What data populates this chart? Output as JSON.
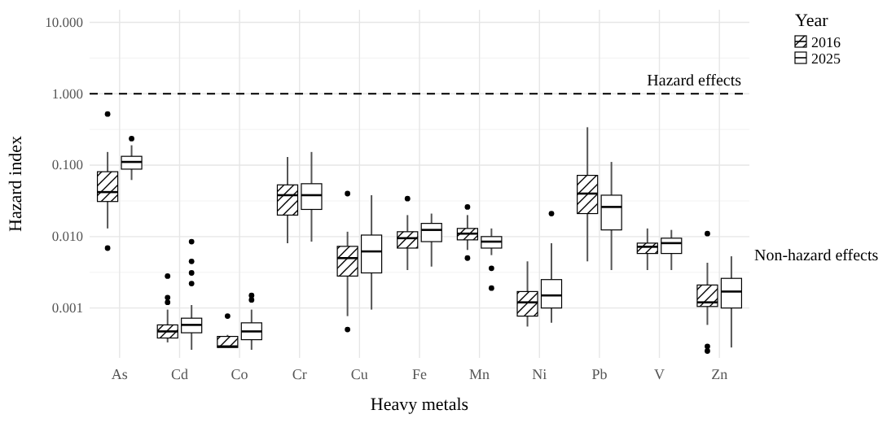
{
  "chart_data": {
    "type": "box",
    "xlabel": "Heavy metals",
    "ylabel": "Hazard index",
    "legend_title": "Year",
    "legend": "top right",
    "grid": true,
    "log": true,
    "categories": [
      "As",
      "Cd",
      "Co",
      "Cr",
      "Cu",
      "Fe",
      "Mn",
      "Ni",
      "Pb",
      "V",
      "Zn"
    ],
    "ylim": [
      0.0002,
      15
    ],
    "yticks": [
      {
        "value": 0.001,
        "label": "0.001"
      },
      {
        "value": 0.01,
        "label": "0.010"
      },
      {
        "value": 0.1,
        "label": "0.100"
      },
      {
        "value": 1,
        "label": "1.000"
      },
      {
        "value": 10,
        "label": "10.000"
      }
    ],
    "ref_lines": [
      {
        "axis": "y",
        "value": 1,
        "label": "Hazard effects",
        "line_style": "dashed",
        "color": "#000000"
      }
    ],
    "annotations": [
      "Non-hazard effects"
    ],
    "series": [
      {
        "name": "2016",
        "color": "#000000",
        "boxes": [
          {
            "low": 0.013,
            "q1": 0.031,
            "median": 0.042,
            "q3": 0.081,
            "high": 0.153,
            "outliers": [
              0.52,
              0.0069
            ]
          },
          {
            "low": 0.00033,
            "q1": 0.00038,
            "median": 0.00047,
            "q3": 0.00058,
            "high": 0.00095,
            "outliers": [
              0.0028,
              0.0012,
              0.0014
            ]
          },
          {
            "low": 0.00028,
            "q1": 0.00028,
            "median": 0.00029,
            "q3": 0.0004,
            "high": 0.00042,
            "outliers": [
              0.00077
            ]
          },
          {
            "low": 0.0081,
            "q1": 0.02,
            "median": 0.038,
            "q3": 0.053,
            "high": 0.13
          },
          {
            "low": 0.00077,
            "q1": 0.0028,
            "median": 0.005,
            "q3": 0.0073,
            "high": 0.0117,
            "outliers": [
              0.04,
              0.0005
            ]
          },
          {
            "low": 0.0034,
            "q1": 0.0069,
            "median": 0.0095,
            "q3": 0.0117,
            "high": 0.02,
            "outliers": [
              0.034
            ]
          },
          {
            "low": 0.0065,
            "q1": 0.009,
            "median": 0.011,
            "q3": 0.013,
            "high": 0.02,
            "outliers": [
              0.026,
              0.005
            ]
          },
          {
            "low": 0.00055,
            "q1": 0.00077,
            "median": 0.0012,
            "q3": 0.0017,
            "high": 0.0045
          },
          {
            "low": 0.0045,
            "q1": 0.021,
            "median": 0.04,
            "q3": 0.072,
            "high": 0.34
          },
          {
            "low": 0.0034,
            "q1": 0.0058,
            "median": 0.0072,
            "q3": 0.0081,
            "high": 0.013
          },
          {
            "low": 0.00058,
            "q1": 0.00105,
            "median": 0.0012,
            "q3": 0.0021,
            "high": 0.0043,
            "outliers": [
              0.011,
              0.00029,
              0.00025
            ]
          }
        ]
      },
      {
        "name": "2025",
        "color": "#000000",
        "boxes": [
          {
            "low": 0.062,
            "q1": 0.088,
            "median": 0.111,
            "q3": 0.133,
            "high": 0.19,
            "outliers": [
              0.235
            ]
          },
          {
            "low": 0.00026,
            "q1": 0.00045,
            "median": 0.00058,
            "q3": 0.00072,
            "high": 0.0011,
            "outliers": [
              0.0085,
              0.0045,
              0.0031,
              0.0022
            ]
          },
          {
            "low": 0.00026,
            "q1": 0.00036,
            "median": 0.00047,
            "q3": 0.00062,
            "high": 0.00095,
            "outliers": [
              0.0015,
              0.0013
            ]
          },
          {
            "low": 0.0085,
            "q1": 0.024,
            "median": 0.038,
            "q3": 0.055,
            "high": 0.153
          },
          {
            "low": 0.00095,
            "q1": 0.0031,
            "median": 0.0062,
            "q3": 0.0105,
            "high": 0.038
          },
          {
            "low": 0.0038,
            "q1": 0.0085,
            "median": 0.0124,
            "q3": 0.0153,
            "high": 0.021
          },
          {
            "low": 0.0055,
            "q1": 0.0069,
            "median": 0.0085,
            "q3": 0.01,
            "high": 0.013,
            "outliers": [
              0.0036,
              0.0019
            ]
          },
          {
            "low": 0.00062,
            "q1": 0.001,
            "median": 0.0015,
            "q3": 0.0025,
            "high": 0.0081,
            "outliers": [
              0.021
            ]
          },
          {
            "low": 0.0034,
            "q1": 0.0124,
            "median": 0.026,
            "q3": 0.038,
            "high": 0.111
          },
          {
            "low": 0.0034,
            "q1": 0.0058,
            "median": 0.0081,
            "q3": 0.0095,
            "high": 0.0124
          },
          {
            "low": 0.00028,
            "q1": 0.001,
            "median": 0.0017,
            "q3": 0.0026,
            "high": 0.0053
          }
        ]
      }
    ]
  }
}
